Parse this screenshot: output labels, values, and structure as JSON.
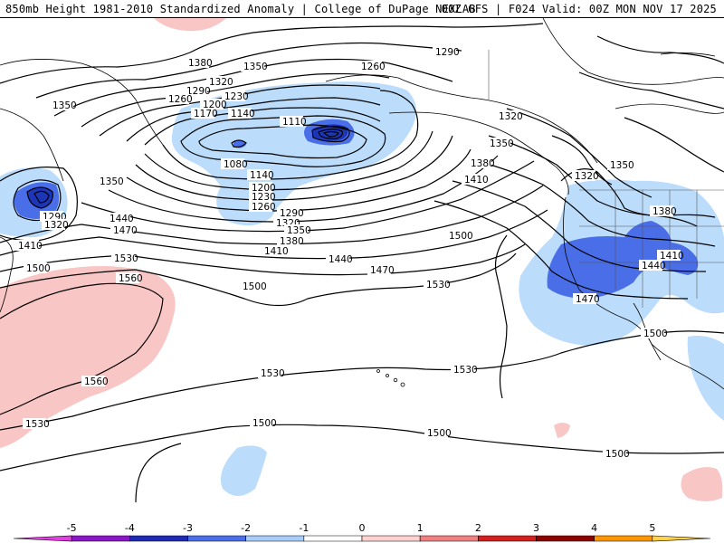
{
  "header": {
    "left": "850mb Height 1981-2010 Standardized Anomaly | College of DuPage NEXLAB",
    "right": "00Z GFS | F024 Valid: 00Z MON NOV 17 2025"
  },
  "map_region": "North Pacific Ocean and western North America",
  "contour_labels": {
    "c1380a": "1380",
    "c1350a": "1350",
    "c1260a": "1260",
    "c1290a": "1290",
    "c1320a": "1320",
    "c1290b": "1290",
    "c1260b": "1260",
    "c1230a": "1230",
    "c1200a": "1200",
    "c1170a": "1170",
    "c1140a": "1140",
    "c1110a": "1110",
    "c1350b": "1350",
    "c1080a": "1080",
    "c1140b": "1140",
    "c1200b": "1200",
    "c1230b": "1230",
    "c1260c": "1260",
    "c1290c": "1290",
    "c1320b": "1320",
    "c1350c": "1350",
    "c1380b": "1380",
    "c1410a": "1410",
    "c1440a": "1440",
    "c1470a": "1470",
    "c1500a": "1500",
    "c1350d": "1350",
    "c1290d": "1290",
    "c1320c": "1320",
    "c1440b": "1440",
    "c1470b": "1470",
    "c1410b": "1410",
    "c1500b": "1500",
    "c1530a": "1530",
    "c1560a": "1560",
    "c1320d": "1320",
    "c1350e": "1350",
    "c1380c": "1380",
    "c1410c": "1410",
    "c1500c": "1500",
    "c1320e": "1320",
    "c1350f": "1350",
    "c1380d": "1380",
    "c1410d": "1410",
    "c1440c": "1440",
    "c1470c": "1470",
    "c1500d": "1500",
    "c1530b": "1530",
    "c1560b": "1560",
    "c1530c": "1530",
    "c1530d": "1530",
    "c1530e": "1530",
    "c1500e": "1500",
    "c1500f": "1500",
    "c1500g": "1500"
  },
  "colorbar": {
    "ticks": [
      "-5",
      "-4",
      "-3",
      "-2",
      "-1",
      "0",
      "1",
      "2",
      "3",
      "4",
      "5"
    ],
    "colors": [
      "#e040e0",
      "#8a14c8",
      "#1e2ab4",
      "#4a6ee8",
      "#a8cdfa",
      "#ffffff",
      "#ffd1d1",
      "#f08080",
      "#d21e1e",
      "#8c0000",
      "#ff9600",
      "#ffd24a"
    ]
  },
  "anomaly_colors": {
    "light_blue": "#bcdcfb",
    "medium_blue": "#3f63e6",
    "dark_blue": "#1d36b8",
    "light_pink": "#f9c6c6"
  }
}
